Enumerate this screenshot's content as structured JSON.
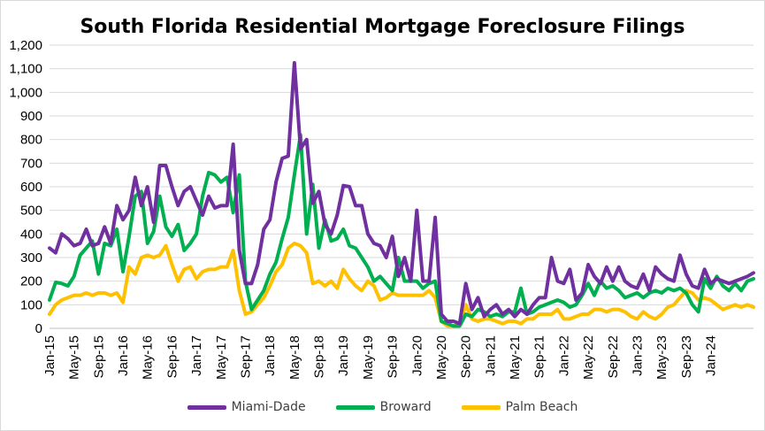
{
  "chart_data": {
    "type": "line",
    "title": "South Florida Residential Mortgage Foreclosure Filings",
    "ylim": [
      0,
      1200
    ],
    "yticks": [
      "0",
      "100",
      "200",
      "300",
      "400",
      "500",
      "600",
      "700",
      "800",
      "900",
      "1,000",
      "1,100",
      "1,200"
    ],
    "xtick_labels": [
      "Jan-15",
      "May-15",
      "Sep-15",
      "Jan-16",
      "May-16",
      "Sep-16",
      "Jan-17",
      "May-17",
      "Sep-17",
      "Jan-18",
      "May-18",
      "Sep-18",
      "Jan-19",
      "May-19",
      "Sep-19",
      "Jan-20",
      "May-20",
      "Sep-20",
      "Jan-21",
      "May-21",
      "Sep-21",
      "Jan-22",
      "May-22",
      "Sep-22",
      "Jan-23",
      "May-23",
      "Sep-23",
      "Jan-24"
    ],
    "x_start": "Jan-15",
    "grid": true,
    "legend": "bottom",
    "series": [
      {
        "name": "Miami-Dade",
        "color": "#7030a0",
        "values": [
          340,
          320,
          400,
          380,
          350,
          360,
          420,
          350,
          360,
          430,
          360,
          520,
          460,
          500,
          640,
          520,
          600,
          450,
          690,
          690,
          600,
          520,
          580,
          600,
          540,
          480,
          560,
          510,
          520,
          520,
          780,
          330,
          190,
          190,
          270,
          420,
          460,
          620,
          720,
          730,
          1125,
          760,
          800,
          530,
          580,
          440,
          400,
          480,
          605,
          600,
          520,
          520,
          400,
          360,
          350,
          300,
          390,
          220,
          300,
          200,
          500,
          200,
          200,
          470,
          60,
          30,
          30,
          20,
          190,
          80,
          130,
          50,
          80,
          100,
          60,
          80,
          50,
          80,
          60,
          100,
          130,
          130,
          300,
          200,
          190,
          250,
          120,
          150,
          270,
          220,
          190,
          260,
          200,
          260,
          200,
          180,
          170,
          230,
          160,
          260,
          230,
          210,
          200,
          310,
          230,
          180,
          170,
          250,
          190,
          210,
          200,
          190,
          200,
          210,
          220,
          235
        ]
      },
      {
        "name": "Broward",
        "color": "#00b050",
        "values": [
          120,
          195,
          190,
          180,
          220,
          310,
          340,
          370,
          230,
          360,
          350,
          420,
          240,
          390,
          560,
          580,
          360,
          410,
          560,
          430,
          390,
          440,
          330,
          360,
          400,
          560,
          660,
          650,
          620,
          640,
          490,
          650,
          200,
          80,
          120,
          160,
          230,
          280,
          380,
          470,
          650,
          820,
          400,
          610,
          340,
          460,
          370,
          380,
          420,
          350,
          340,
          300,
          260,
          200,
          220,
          190,
          160,
          300,
          200,
          200,
          200,
          170,
          190,
          200,
          30,
          20,
          10,
          10,
          60,
          50,
          80,
          70,
          50,
          60,
          50,
          70,
          70,
          170,
          60,
          70,
          90,
          100,
          110,
          120,
          110,
          90,
          100,
          140,
          190,
          140,
          200,
          170,
          180,
          160,
          130,
          140,
          150,
          130,
          150,
          160,
          150,
          170,
          160,
          170,
          150,
          100,
          70,
          210,
          170,
          220,
          180,
          160,
          190,
          160,
          200,
          210
        ]
      },
      {
        "name": "Palm Beach",
        "color": "#ffc000",
        "values": [
          60,
          100,
          120,
          130,
          140,
          140,
          150,
          140,
          150,
          150,
          140,
          150,
          110,
          260,
          230,
          300,
          310,
          300,
          310,
          350,
          270,
          200,
          250,
          260,
          210,
          240,
          250,
          250,
          260,
          260,
          330,
          160,
          60,
          70,
          100,
          130,
          180,
          240,
          270,
          340,
          360,
          350,
          320,
          190,
          200,
          180,
          200,
          170,
          250,
          210,
          180,
          160,
          200,
          180,
          120,
          130,
          150,
          140,
          140,
          140,
          140,
          140,
          160,
          130,
          30,
          10,
          10,
          20,
          100,
          40,
          30,
          40,
          40,
          30,
          20,
          30,
          30,
          20,
          40,
          40,
          60,
          60,
          60,
          80,
          40,
          40,
          50,
          60,
          60,
          80,
          80,
          70,
          80,
          80,
          70,
          50,
          40,
          70,
          50,
          40,
          60,
          90,
          100,
          130,
          160,
          150,
          120,
          130,
          120,
          100,
          80,
          90,
          100,
          90,
          100,
          90
        ]
      }
    ]
  }
}
